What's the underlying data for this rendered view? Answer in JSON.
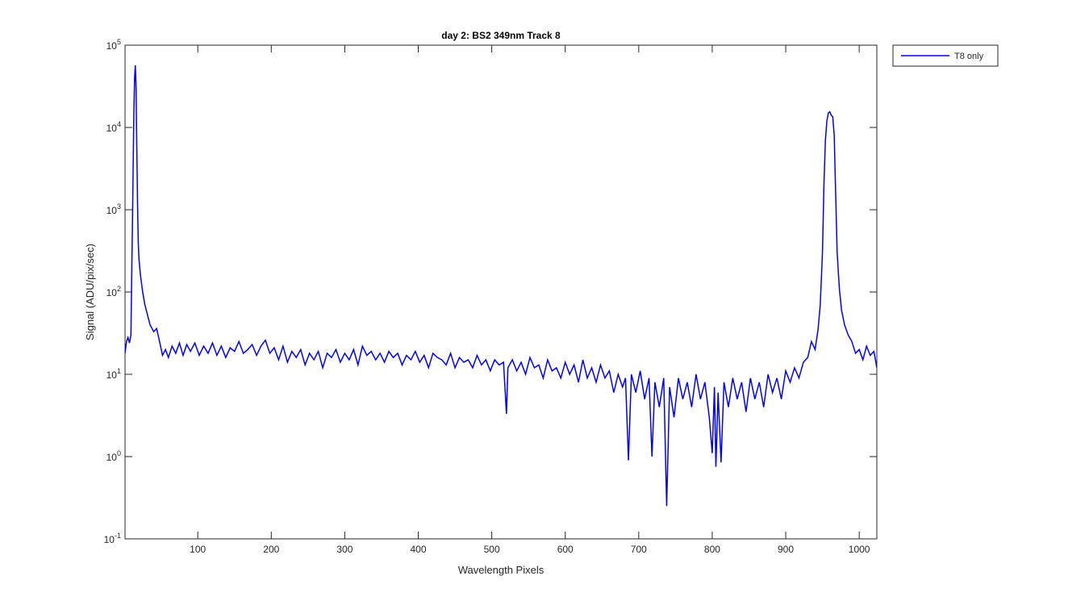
{
  "chart_data": {
    "type": "line",
    "title": "day 2: BS2  349nm  Track 8",
    "xlabel": "Wavelength Pixels",
    "ylabel": "Signal (ADU/pix/sec)",
    "xlim": [
      1,
      1024
    ],
    "xticks": [
      100,
      200,
      300,
      400,
      500,
      600,
      700,
      800,
      900,
      1000
    ],
    "ylim": [
      0.1,
      100000
    ],
    "yscale": "log",
    "yticks": [
      {
        "value": 0.1,
        "label": "10^-1"
      },
      {
        "value": 1,
        "label": "10^0"
      },
      {
        "value": 10,
        "label": "10^1"
      },
      {
        "value": 100,
        "label": "10^2"
      },
      {
        "value": 1000,
        "label": "10^3"
      },
      {
        "value": 10000,
        "label": "10^4"
      },
      {
        "value": 100000,
        "label": "10^5"
      }
    ],
    "legend": "northeastoutside",
    "x": [
      1,
      3,
      5,
      7,
      9,
      11,
      12,
      13,
      14,
      15,
      16,
      17,
      18,
      19,
      20,
      22,
      25,
      28,
      31,
      35,
      40,
      44,
      48,
      52,
      56,
      60,
      65,
      70,
      75,
      80,
      85,
      90,
      96,
      102,
      108,
      114,
      120,
      126,
      132,
      138,
      144,
      150,
      156,
      162,
      168,
      174,
      180,
      186,
      192,
      198,
      204,
      210,
      216,
      222,
      228,
      234,
      240,
      246,
      252,
      258,
      264,
      270,
      276,
      282,
      288,
      294,
      300,
      306,
      312,
      318,
      324,
      330,
      336,
      342,
      348,
      354,
      360,
      366,
      372,
      378,
      384,
      390,
      396,
      402,
      408,
      414,
      420,
      426,
      432,
      438,
      444,
      450,
      456,
      462,
      468,
      474,
      480,
      486,
      492,
      498,
      504,
      510,
      516,
      520,
      522,
      528,
      534,
      540,
      546,
      552,
      558,
      564,
      570,
      576,
      582,
      588,
      594,
      600,
      606,
      612,
      618,
      624,
      630,
      636,
      642,
      648,
      654,
      660,
      666,
      672,
      678,
      682,
      686,
      690,
      696,
      702,
      708,
      714,
      718,
      722,
      728,
      734,
      738,
      742,
      748,
      754,
      760,
      766,
      772,
      778,
      784,
      790,
      796,
      800,
      803,
      805,
      808,
      812,
      816,
      822,
      828,
      834,
      840,
      846,
      852,
      858,
      864,
      870,
      876,
      882,
      888,
      894,
      900,
      906,
      912,
      918,
      924,
      930,
      935,
      940,
      944,
      947,
      950,
      952,
      954,
      956,
      958,
      960,
      962,
      964,
      966,
      968,
      970,
      973,
      976,
      980,
      985,
      990,
      995,
      1000,
      1005,
      1010,
      1015,
      1020,
      1024
    ],
    "series": [
      {
        "name": "T8 only",
        "color": "#0000ff",
        "values": [
          18,
          25,
          28,
          24,
          30,
          600,
          3000,
          15000,
          40000,
          57000,
          30000,
          6000,
          1200,
          400,
          250,
          160,
          100,
          70,
          55,
          40,
          33,
          36,
          25,
          17,
          20,
          16,
          22,
          18,
          24,
          17,
          23,
          19,
          24,
          17,
          22,
          18,
          24,
          17,
          22,
          16,
          21,
          19,
          25,
          18,
          20,
          23,
          17,
          22,
          26,
          18,
          21,
          15,
          22,
          14,
          19,
          16,
          20,
          13,
          18,
          15,
          19,
          12,
          18,
          16,
          20,
          14,
          18,
          15,
          20,
          13,
          22,
          17,
          19,
          15,
          18,
          14,
          19,
          16,
          18,
          13,
          17,
          15,
          19,
          14,
          17,
          12,
          18,
          16,
          15,
          13,
          18,
          12,
          16,
          14,
          15,
          12,
          17,
          13,
          15,
          11,
          15,
          13,
          14,
          3.3,
          12,
          15,
          11,
          14,
          10,
          16,
          12,
          13,
          9,
          15,
          11,
          12,
          9,
          14,
          10,
          13,
          8,
          15,
          9,
          12,
          8,
          13,
          9,
          11,
          6,
          10,
          7,
          9,
          0.9,
          10,
          6,
          11,
          5,
          9,
          1,
          8,
          4,
          9,
          0.25,
          7,
          3,
          9,
          5,
          8,
          4,
          10,
          5,
          8,
          3,
          1.1,
          7,
          0.75,
          6,
          0.85,
          8,
          4,
          9,
          5,
          8,
          3.5,
          9,
          5,
          8,
          4,
          10,
          6,
          9,
          5,
          11,
          8,
          12,
          9,
          14,
          16,
          25,
          20,
          35,
          70,
          300,
          2000,
          7000,
          12000,
          15000,
          15500,
          14000,
          13500,
          8000,
          1500,
          300,
          110,
          60,
          40,
          30,
          25,
          18,
          20,
          15,
          22,
          17,
          19,
          12
        ]
      }
    ]
  }
}
